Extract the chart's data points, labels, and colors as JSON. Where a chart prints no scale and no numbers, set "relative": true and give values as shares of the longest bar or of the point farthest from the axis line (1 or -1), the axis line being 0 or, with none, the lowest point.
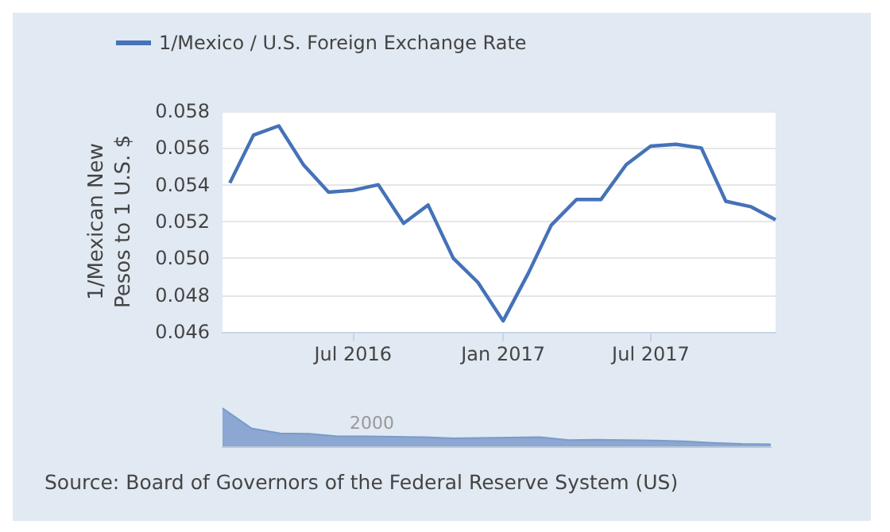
{
  "chart_data": [
    {
      "type": "line",
      "ylabel": "1/Mexican New Pesos to 1 U.S. $",
      "annotations": [
        "Source: Board of Governors of the Federal Reserve System (US)"
      ],
      "x": [
        "2016-02",
        "2016-03",
        "2016-04",
        "2016-05",
        "2016-06",
        "2016-07",
        "2016-08",
        "2016-09",
        "2016-10",
        "2016-11",
        "2016-12",
        "2017-01",
        "2017-02",
        "2017-03",
        "2017-04",
        "2017-05",
        "2017-06",
        "2017-07",
        "2017-08",
        "2017-09",
        "2017-10",
        "2017-11",
        "2017-12"
      ],
      "series": [
        {
          "name": "1/Mexico / U.S. Foreign Exchange Rate",
          "color": "#4572b8",
          "values": [
            0.0541,
            0.0567,
            0.0572,
            0.0551,
            0.0536,
            0.0537,
            0.054,
            0.0519,
            0.0529,
            0.05,
            0.0487,
            0.0466,
            0.0492,
            0.0518,
            0.0532,
            0.0532,
            0.0551,
            0.0561,
            0.0562,
            0.056,
            0.0531,
            0.0528,
            0.0521
          ]
        }
      ],
      "xlim": [
        "2016-01-23",
        "2017-12-01"
      ],
      "xticks": [
        {
          "value": "2016-07",
          "label": "Jul 2016"
        },
        {
          "value": "2017-01",
          "label": "Jan 2017"
        },
        {
          "value": "2017-07",
          "label": "Jul 2017"
        }
      ],
      "ylim": [
        0.046,
        0.058
      ],
      "yticks": [
        0.046,
        0.048,
        {
          "value": 0.05,
          "label": "0.050"
        },
        0.052,
        0.054,
        0.056,
        0.058
      ],
      "grid": "y",
      "legend": "top left",
      "marker": "none",
      "line_style": "solid"
    },
    {
      "type": "area",
      "relative": true,
      "color": "#7b9bcc",
      "categories": [
        null,
        null,
        null,
        null,
        null,
        null,
        null,
        null,
        null,
        null,
        null,
        null,
        null,
        null,
        null,
        null,
        null,
        null,
        null,
        null
      ],
      "values": [
        1.0,
        0.47,
        0.34,
        0.33,
        0.26,
        0.26,
        0.25,
        0.24,
        0.21,
        0.22,
        0.23,
        0.24,
        0.16,
        0.17,
        0.16,
        0.15,
        0.13,
        0.09,
        0.06,
        0.05
      ],
      "annotations": [
        "2000"
      ]
    }
  ]
}
